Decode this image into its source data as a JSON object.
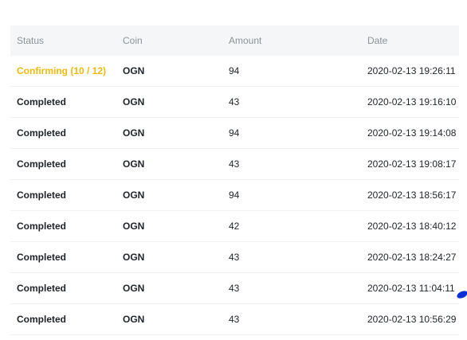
{
  "columns": {
    "status": "Status",
    "coin": "Coin",
    "amount": "Amount",
    "date": "Date"
  },
  "rows": [
    {
      "status": "Confirming (10 / 12)",
      "coin": "OGN",
      "amount": "94",
      "date": "2020-02-13 19:26:11"
    },
    {
      "status": "Completed",
      "coin": "OGN",
      "amount": "43",
      "date": "2020-02-13 19:16:10"
    },
    {
      "status": "Completed",
      "coin": "OGN",
      "amount": "94",
      "date": "2020-02-13 19:14:08"
    },
    {
      "status": "Completed",
      "coin": "OGN",
      "amount": "43",
      "date": "2020-02-13 19:08:17"
    },
    {
      "status": "Completed",
      "coin": "OGN",
      "amount": "94",
      "date": "2020-02-13 18:56:17"
    },
    {
      "status": "Completed",
      "coin": "OGN",
      "amount": "42",
      "date": "2020-02-13 18:40:12"
    },
    {
      "status": "Completed",
      "coin": "OGN",
      "amount": "43",
      "date": "2020-02-13 18:24:27"
    },
    {
      "status": "Completed",
      "coin": "OGN",
      "amount": "43",
      "date": "2020-02-13 11:04:11"
    },
    {
      "status": "Completed",
      "coin": "OGN",
      "amount": "43",
      "date": "2020-02-13 10:56:29"
    }
  ],
  "colors": {
    "pending_status": "#f0b90b",
    "header_text": "#8c939c",
    "header_bg": "#f5f6f7",
    "body_text": "#1e2329"
  }
}
